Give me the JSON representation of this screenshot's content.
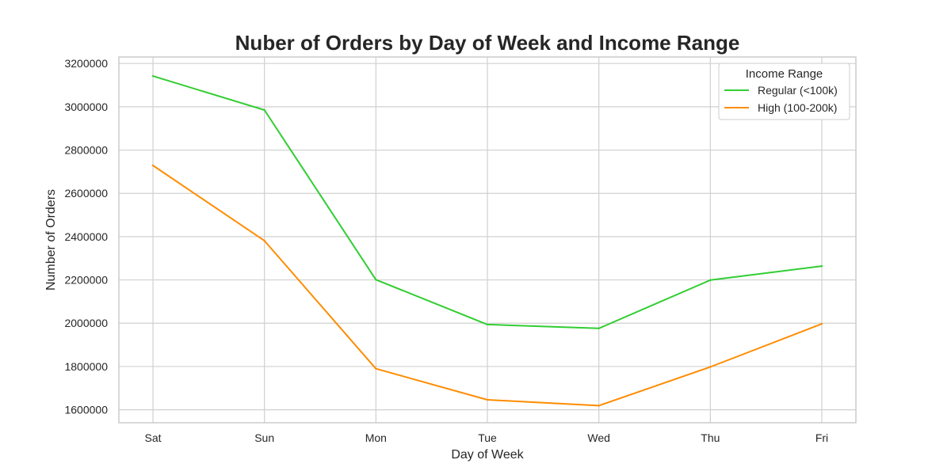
{
  "chart_data": {
    "type": "line",
    "title": "Nuber of Orders by Day of Week and Income Range",
    "xlabel": "Day of Week",
    "ylabel": "Number of Orders",
    "categories": [
      "Sat",
      "Sun",
      "Mon",
      "Tue",
      "Wed",
      "Thu",
      "Fri"
    ],
    "ylim": [
      1540000,
      3230000
    ],
    "yticks": [
      1600000,
      1800000,
      2000000,
      2200000,
      2400000,
      2600000,
      2800000,
      3000000,
      3200000
    ],
    "ytick_labels": [
      "1600000",
      "1800000",
      "2000000",
      "2200000",
      "2400000",
      "2600000",
      "2800000",
      "3000000",
      "3200000"
    ],
    "grid": true,
    "legend": {
      "title": "Income Range",
      "placement": "top-right"
    },
    "series": [
      {
        "name": "Regular (<100k)",
        "color": "#32cd32",
        "values": [
          3142000,
          2985000,
          2201000,
          1994000,
          1976000,
          2199000,
          2264000
        ]
      },
      {
        "name": "High (100-200k)",
        "color": "#ff8c00",
        "values": [
          2729000,
          2381000,
          1790000,
          1646000,
          1619000,
          1798000,
          1997000
        ]
      }
    ]
  }
}
